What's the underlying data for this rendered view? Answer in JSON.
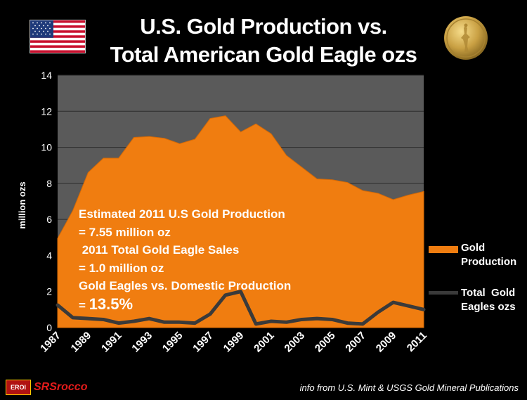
{
  "header": {
    "title_line1": "U.S. Gold Production vs.",
    "title_line2": "Total American Gold Eagle ozs",
    "flag_icon": "us-flag-icon",
    "coin_icon": "gold-eagle-coin-icon"
  },
  "annotation": {
    "line1": "Estimated 2011 U.S Gold Production",
    "line2": "= 7.55 million oz",
    "line3": " 2011 Total Gold Eagle Sales",
    "line4": "= 1.0 million oz",
    "line5": "Gold Eagles vs. Domestic Production",
    "line6_prefix": "= ",
    "line6_value": "13.5%"
  },
  "legend": {
    "production_label_1": "Gold",
    "production_label_2": "Production",
    "eagles_label_1": "Total  Gold",
    "eagles_label_2": "Eagles ozs"
  },
  "footer": {
    "brand_badge": "EROI",
    "brand_name": "SRSrocco",
    "source": "info from U.S. Mint & USGS Gold Mineral Publications"
  },
  "colors": {
    "production": "#f07d10",
    "eagles": "#3a3a3a",
    "plot_bg": "#5a5a5a",
    "grid": "#2c2c2c"
  },
  "chart_data": {
    "type": "area",
    "title": "U.S. Gold Production vs. Total American Gold Eagle ozs",
    "xlabel": "",
    "ylabel": "million ozs",
    "ylim": [
      0,
      14
    ],
    "yticks": [
      0,
      2,
      4,
      6,
      8,
      10,
      12,
      14
    ],
    "x": [
      1987,
      1988,
      1989,
      1990,
      1991,
      1992,
      1993,
      1994,
      1995,
      1996,
      1997,
      1998,
      1999,
      2000,
      2001,
      2002,
      2003,
      2004,
      2005,
      2006,
      2007,
      2008,
      2009,
      2010,
      2011
    ],
    "xtick_labels": [
      "1987",
      "1989",
      "1991",
      "1993",
      "1995",
      "1997",
      "1999",
      "2001",
      "2003",
      "2005",
      "2007",
      "2009",
      "2011"
    ],
    "grid": true,
    "legend_position": "right",
    "series": [
      {
        "name": "Gold Production",
        "kind": "area",
        "values": [
          4.95,
          6.5,
          8.6,
          9.4,
          9.4,
          10.55,
          10.6,
          10.5,
          10.2,
          10.45,
          11.6,
          11.75,
          10.85,
          11.3,
          10.75,
          9.55,
          8.9,
          8.25,
          8.2,
          8.05,
          7.6,
          7.45,
          7.1,
          7.35,
          7.55
        ]
      },
      {
        "name": "Total Gold Eagles ozs",
        "kind": "line",
        "values": [
          1.25,
          0.55,
          0.5,
          0.45,
          0.25,
          0.35,
          0.5,
          0.3,
          0.3,
          0.25,
          0.75,
          1.8,
          2.0,
          0.2,
          0.35,
          0.3,
          0.45,
          0.5,
          0.45,
          0.25,
          0.2,
          0.85,
          1.4,
          1.2,
          1.0
        ]
      }
    ]
  }
}
